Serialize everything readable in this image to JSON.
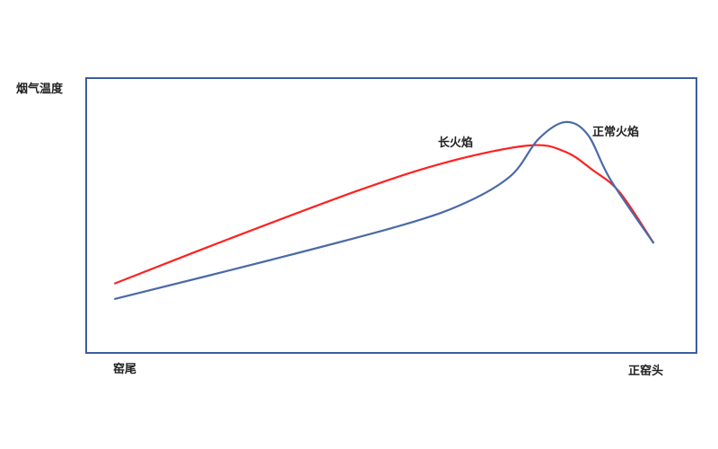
{
  "chart_data": {
    "type": "line",
    "title": "",
    "ylabel": "烟气温度",
    "x_start_label": "窑尾",
    "x_end_label": "正窑头",
    "xlim": [
      0,
      100
    ],
    "ylim": [
      0,
      100
    ],
    "grid": false,
    "series": [
      {
        "name": "长火焰",
        "color": "#ff2020",
        "x": [
          4.6,
          22.6,
          44.7,
          59.4,
          72.6,
          78.5,
          82.9,
          87.4,
          93.0
        ],
        "y": [
          25.2,
          40.8,
          59.2,
          69.6,
          75.5,
          73.2,
          66.7,
          58.5,
          39.9
        ]
      },
      {
        "name": "正常火焰",
        "color": "#4a6aa8",
        "x": [
          4.6,
          30.0,
          52.1,
          62.4,
          69.7,
          74.1,
          78.5,
          82.2,
          85.9,
          93.0
        ],
        "y": [
          19.6,
          33.7,
          46.7,
          54.9,
          64.7,
          77.8,
          84.0,
          79.4,
          63.1,
          39.9
        ]
      }
    ],
    "frame_color": "#3b5ea0"
  }
}
